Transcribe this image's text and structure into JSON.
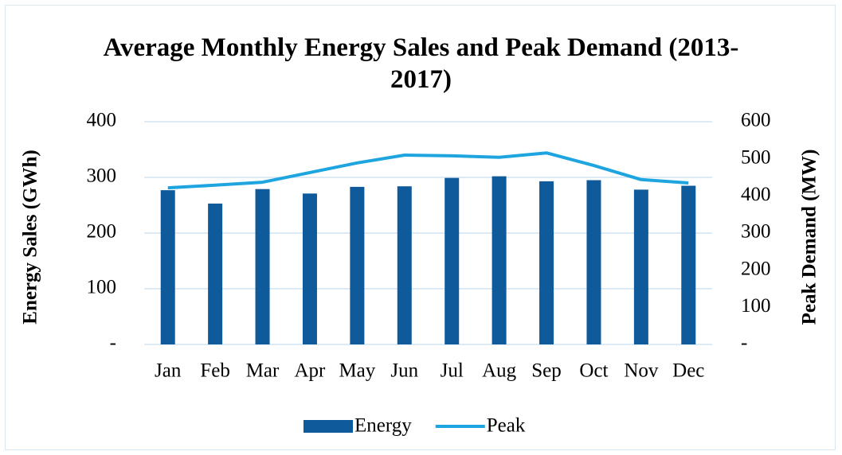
{
  "chart_data": {
    "type": "bar_line",
    "title": "Average Monthly Energy Sales and Peak Demand (2013-2017)",
    "y_label": "Energy Sales (GWh)",
    "y2_label": "Peak Demand (MW)",
    "categories": [
      "Jan",
      "Feb",
      "Mar",
      "Apr",
      "May",
      "Jun",
      "Jul",
      "Aug",
      "Sep",
      "Oct",
      "Nov",
      "Dec"
    ],
    "series": [
      {
        "name": "Energy",
        "type": "bar",
        "color": "#0f5a9a",
        "values": [
          277,
          253,
          279,
          271,
          283,
          284,
          299,
          302,
          293,
          295,
          278,
          285
        ]
      },
      {
        "name": "Peak",
        "type": "line",
        "axis": "y2",
        "color": "#1ea5e0",
        "values": [
          422,
          429,
          437,
          463,
          489,
          510,
          508,
          504,
          516,
          482,
          444,
          435
        ]
      }
    ],
    "ylim": [
      0,
      400
    ],
    "yticks": [
      {
        "value": 0,
        "label": "-"
      },
      100,
      200,
      300,
      400
    ],
    "y2lim": [
      0,
      600
    ],
    "y2ticks": [
      {
        "value": 0,
        "label": "-"
      },
      100,
      200,
      300,
      400,
      500,
      600
    ],
    "grid": true,
    "legend": "bottom"
  }
}
